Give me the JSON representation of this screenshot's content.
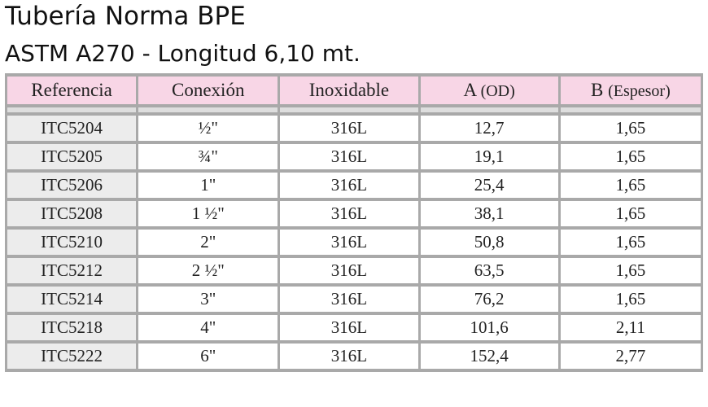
{
  "title": "Tubería Norma BPE",
  "subtitle": "ASTM A270 - Longitud 6,10 mt.",
  "headers": {
    "referencia": "Referencia",
    "conexion": "Conexión",
    "inoxidable": "Inoxidable",
    "a_main": "A",
    "a_note": "(OD)",
    "b_main": "B",
    "b_note": "(Espesor)"
  },
  "rows": [
    {
      "ref": "ITC5204",
      "conexion": "½\"",
      "inox": "316L",
      "a": "12,7",
      "b": "1,65"
    },
    {
      "ref": "ITC5205",
      "conexion": "¾\"",
      "inox": "316L",
      "a": "19,1",
      "b": "1,65"
    },
    {
      "ref": "ITC5206",
      "conexion": "1\"",
      "inox": "316L",
      "a": "25,4",
      "b": "1,65"
    },
    {
      "ref": "ITC5208",
      "conexion": "1 ½\"",
      "inox": "316L",
      "a": "38,1",
      "b": "1,65"
    },
    {
      "ref": "ITC5210",
      "conexion": "2\"",
      "inox": "316L",
      "a": "50,8",
      "b": "1,65"
    },
    {
      "ref": "ITC5212",
      "conexion": "2 ½\"",
      "inox": "316L",
      "a": "63,5",
      "b": "1,65"
    },
    {
      "ref": "ITC5214",
      "conexion": "3\"",
      "inox": "316L",
      "a": "76,2",
      "b": "1,65"
    },
    {
      "ref": "ITC5218",
      "conexion": "4\"",
      "inox": "316L",
      "a": "101,6",
      "b": "2,11"
    },
    {
      "ref": "ITC5222",
      "conexion": "6\"",
      "inox": "316L",
      "a": "152,4",
      "b": "2,77"
    }
  ]
}
